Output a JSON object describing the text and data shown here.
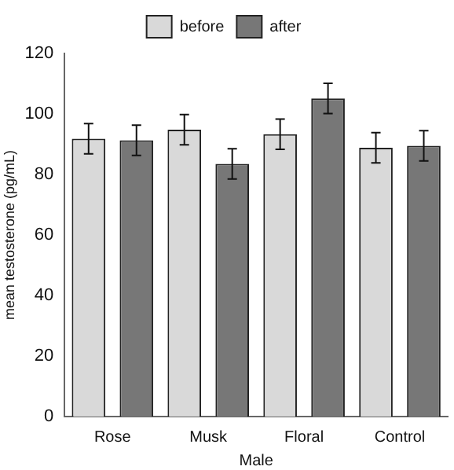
{
  "chart_data": {
    "type": "bar",
    "xlabel": "Male",
    "ylabel": "mean testosterone (pg/mL)",
    "categories": [
      "Rose",
      "Musk",
      "Floral",
      "Control"
    ],
    "series": [
      {
        "name": "before",
        "color": "#d9d9d9",
        "values": [
          91.8,
          94.8,
          93.3,
          88.8
        ],
        "errors": [
          5,
          5,
          5,
          5
        ]
      },
      {
        "name": "after",
        "color": "#777777",
        "values": [
          91.3,
          83.5,
          105.1,
          89.5
        ],
        "errors": [
          5,
          5,
          5,
          5
        ]
      }
    ],
    "ylim": [
      0,
      120
    ],
    "yticks": [
      0,
      20,
      40,
      60,
      80,
      100,
      120
    ],
    "grid": false,
    "legend": "top"
  }
}
